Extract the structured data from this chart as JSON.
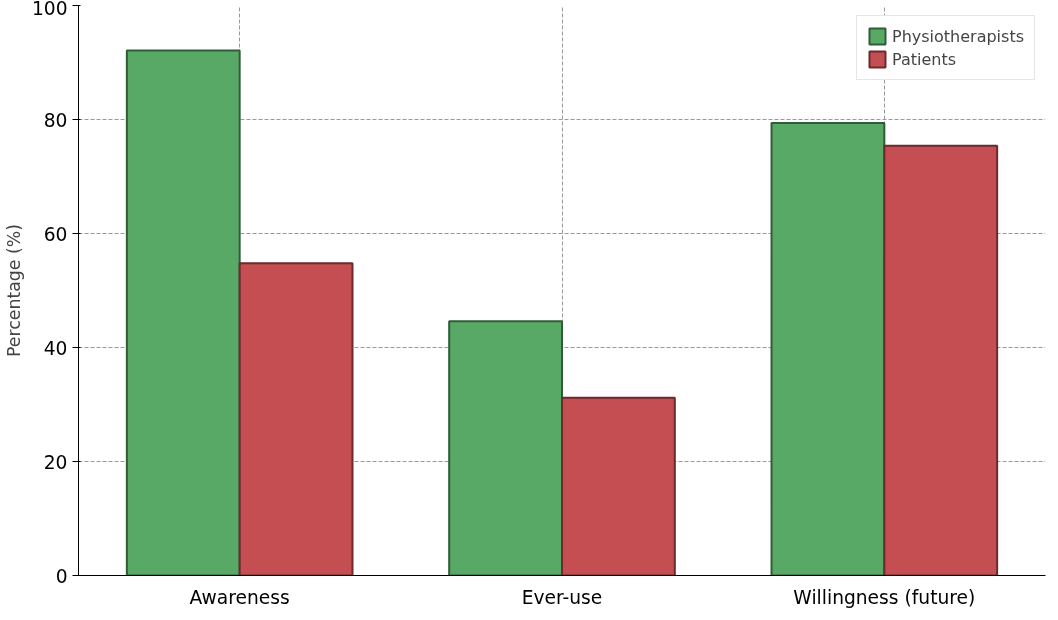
{
  "chart_data": {
    "type": "bar",
    "ylabel": "Percentage (%)",
    "categories": [
      "Awareness",
      "Ever-use",
      "Willingness (future)"
    ],
    "series": [
      {
        "name": "Physiotherapists",
        "color": "#58a866",
        "values": [
          92.1,
          44.6,
          79.4
        ]
      },
      {
        "name": "Patients",
        "color": "#c44e52",
        "values": [
          54.8,
          31.2,
          75.4
        ]
      }
    ],
    "ylim": [
      0,
      100
    ],
    "yticks": [
      0,
      20,
      40,
      60,
      80,
      100
    ],
    "grid": true,
    "line_style": "dashed",
    "legend": "top right"
  }
}
